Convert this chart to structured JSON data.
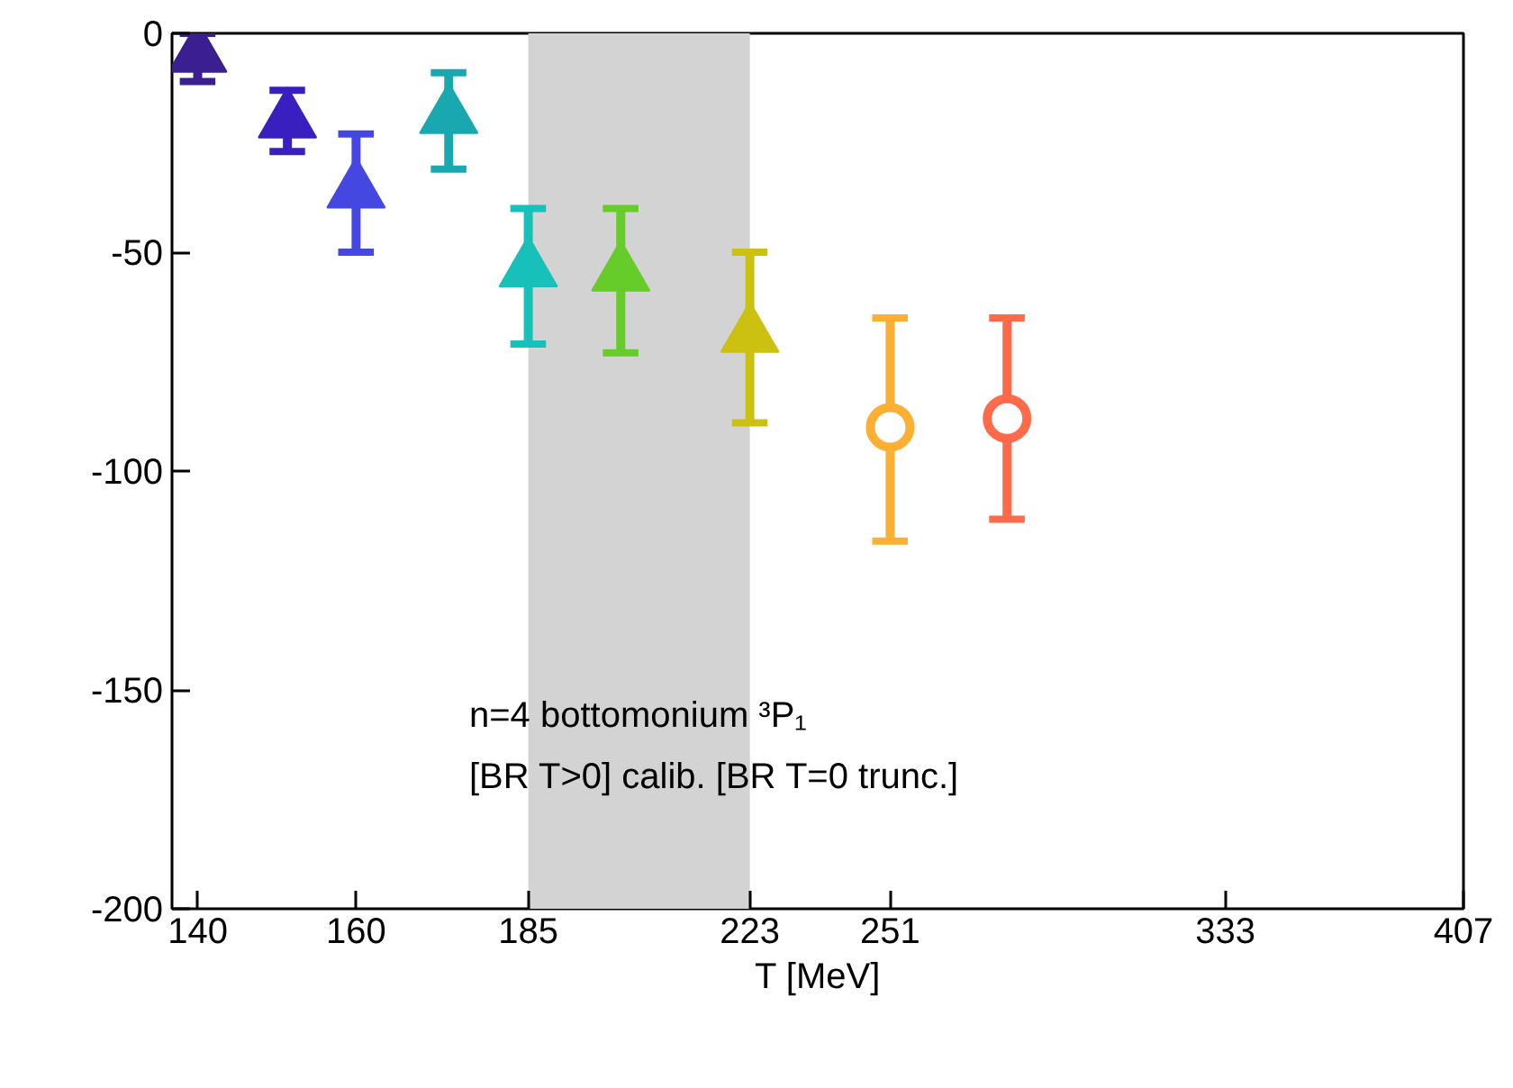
{
  "chart_data": {
    "type": "scatter",
    "xlabel": "T [MeV]",
    "log": "x",
    "grid": false,
    "marker": "triangle",
    "xlim": [
      137,
      407
    ],
    "xticks": [
      140,
      160,
      185,
      223,
      251,
      333,
      407
    ],
    "ylim": [
      -200,
      0
    ],
    "yticks": [
      -200,
      -150,
      -100,
      -50,
      0
    ],
    "bands": [
      {
        "axis": "x",
        "from": 185,
        "to": 223,
        "color": "#d3d3d3"
      }
    ],
    "annotations": [
      "n=4 bottomonium ³P₁",
      "[BR T>0] calib. [BR T=0 trunc.]"
    ],
    "series": [
      {
        "color": "#3b1f91",
        "x": [
          140
        ],
        "values": [
          -5
        ],
        "errors": [
          [
            -11,
            0
          ]
        ]
      },
      {
        "color": "#3a1fc0",
        "x": [
          151
        ],
        "values": [
          -20
        ],
        "errors": [
          [
            -27,
            -13
          ]
        ]
      },
      {
        "color": "#4448e0",
        "x": [
          160
        ],
        "values": [
          -36
        ],
        "errors": [
          [
            -50,
            -23
          ]
        ]
      },
      {
        "color": "#19a8b0",
        "x": [
          173
        ],
        "values": [
          -19
        ],
        "errors": [
          [
            -31,
            -9
          ]
        ]
      },
      {
        "color": "#17c0b8",
        "x": [
          185
        ],
        "values": [
          -54
        ],
        "errors": [
          [
            -71,
            -40
          ]
        ]
      },
      {
        "color": "#66cc2a",
        "x": [
          200
        ],
        "values": [
          -55
        ],
        "errors": [
          [
            -73,
            -40
          ]
        ]
      },
      {
        "color": "#ccc010",
        "x": [
          223
        ],
        "values": [
          -69
        ],
        "errors": [
          [
            -89,
            -50
          ]
        ]
      },
      {
        "color": "#fbb034",
        "x": [
          251
        ],
        "values": [
          -90
        ],
        "errors": [
          [
            -116,
            -65
          ]
        ],
        "marker": "circle"
      },
      {
        "color": "#ff6a4a",
        "x": [
          277
        ],
        "values": [
          -88
        ],
        "errors": [
          [
            -111,
            -65
          ]
        ],
        "marker": "circle"
      }
    ]
  }
}
